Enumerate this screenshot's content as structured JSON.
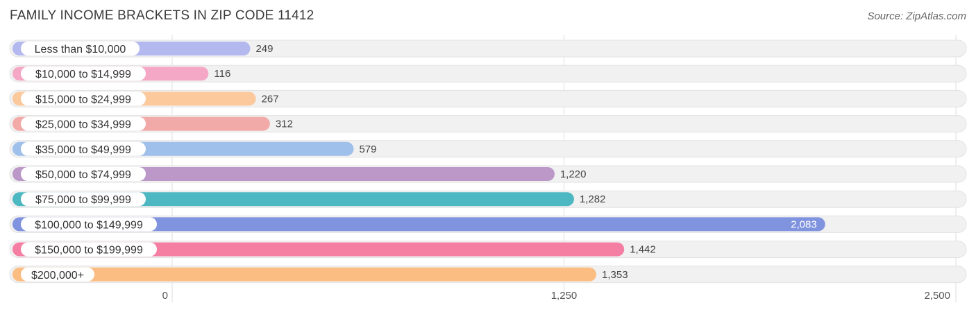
{
  "header": {
    "title": "FAMILY INCOME BRACKETS IN ZIP CODE 11412",
    "source": "Source: ZipAtlas.com"
  },
  "chart_data": {
    "type": "bar",
    "orientation": "horizontal",
    "categories": [
      "Less than $10,000",
      "$10,000 to $14,999",
      "$15,000 to $24,999",
      "$25,000 to $34,999",
      "$35,000 to $49,999",
      "$50,000 to $74,999",
      "$75,000 to $99,999",
      "$100,000 to $149,999",
      "$150,000 to $199,999",
      "$200,000+"
    ],
    "values": [
      249,
      116,
      267,
      312,
      579,
      1220,
      1282,
      2083,
      1442,
      1353
    ],
    "value_labels": [
      "249",
      "116",
      "267",
      "312",
      "579",
      "1,220",
      "1,282",
      "2,083",
      "1,442",
      "1,353"
    ],
    "colors": [
      "#b3b8ee",
      "#f5a8c6",
      "#fbc99b",
      "#f2aaa8",
      "#9fc0ea",
      "#bb98c8",
      "#4db8c2",
      "#8093df",
      "#f47fa3",
      "#fbbd82"
    ],
    "xlim": [
      0,
      2500
    ],
    "xticks": [
      0,
      1250,
      2500
    ],
    "xtick_labels": [
      "0",
      "1,250",
      "2,500"
    ],
    "grid": true,
    "legend": "none"
  }
}
